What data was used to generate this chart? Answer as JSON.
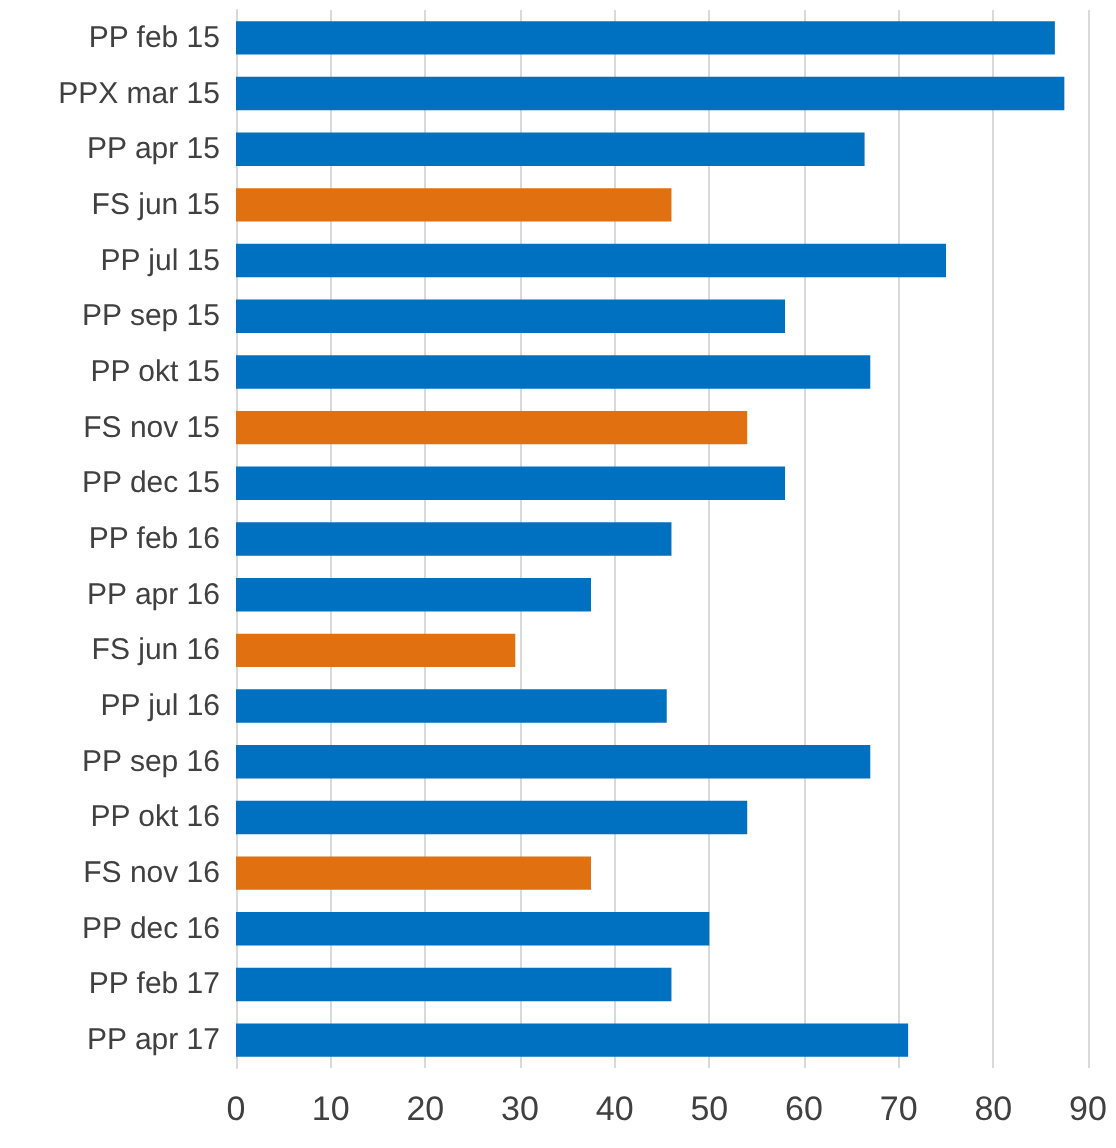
{
  "chart_data": {
    "type": "bar",
    "orientation": "horizontal",
    "categories": [
      "PP feb 15",
      "PPX mar 15",
      "PP apr 15",
      "FS jun 15",
      "PP jul 15",
      "PP sep 15",
      "PP okt 15",
      "FS nov 15",
      "PP dec 15",
      "PP feb 16",
      "PP apr 16",
      "FS jun 16",
      "PP jul 16",
      "PP sep 16",
      "PP okt 16",
      "FS nov 16",
      "PP dec 16",
      "PP feb 17",
      "PP apr 17"
    ],
    "values": [
      86.5,
      87.5,
      66.4,
      46,
      75,
      58,
      67,
      54,
      58,
      46,
      37.5,
      29.5,
      45.5,
      67,
      54,
      37.5,
      50,
      46,
      71
    ],
    "colors": [
      "#0070c0",
      "#0070c0",
      "#0070c0",
      "#e07010",
      "#0070c0",
      "#0070c0",
      "#0070c0",
      "#e07010",
      "#0070c0",
      "#0070c0",
      "#0070c0",
      "#e07010",
      "#0070c0",
      "#0070c0",
      "#0070c0",
      "#e07010",
      "#0070c0",
      "#0070c0",
      "#0070c0"
    ],
    "xlim": [
      0,
      90
    ],
    "xticks": [
      0,
      10,
      20,
      30,
      40,
      50,
      60,
      70,
      80,
      90
    ],
    "grid": "x"
  }
}
